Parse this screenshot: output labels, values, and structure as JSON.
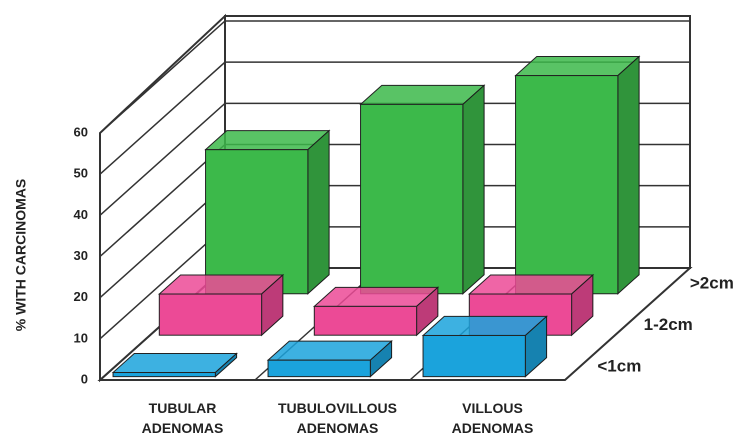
{
  "chart_data": {
    "type": "bar3d",
    "y_axis_label": "% WITH CARCINOMAS",
    "categories": [
      "TUBULAR ADENOMAS",
      "TUBULOVILLOUS ADENOMAS",
      "VILLOUS ADENOMAS"
    ],
    "series": [
      {
        "name": "<1cm",
        "color": "#1ba3dc",
        "values": [
          1,
          4,
          10
        ]
      },
      {
        "name": "1-2cm",
        "color": "#ec4a96",
        "values": [
          10,
          7,
          10
        ]
      },
      {
        "name": ">2cm",
        "color": "#3cb94a",
        "values": [
          35,
          46,
          53
        ]
      }
    ],
    "ylim": [
      0,
      60
    ],
    "yticks": [
      0,
      10,
      20,
      30,
      40,
      50,
      60
    ],
    "grid": true
  }
}
